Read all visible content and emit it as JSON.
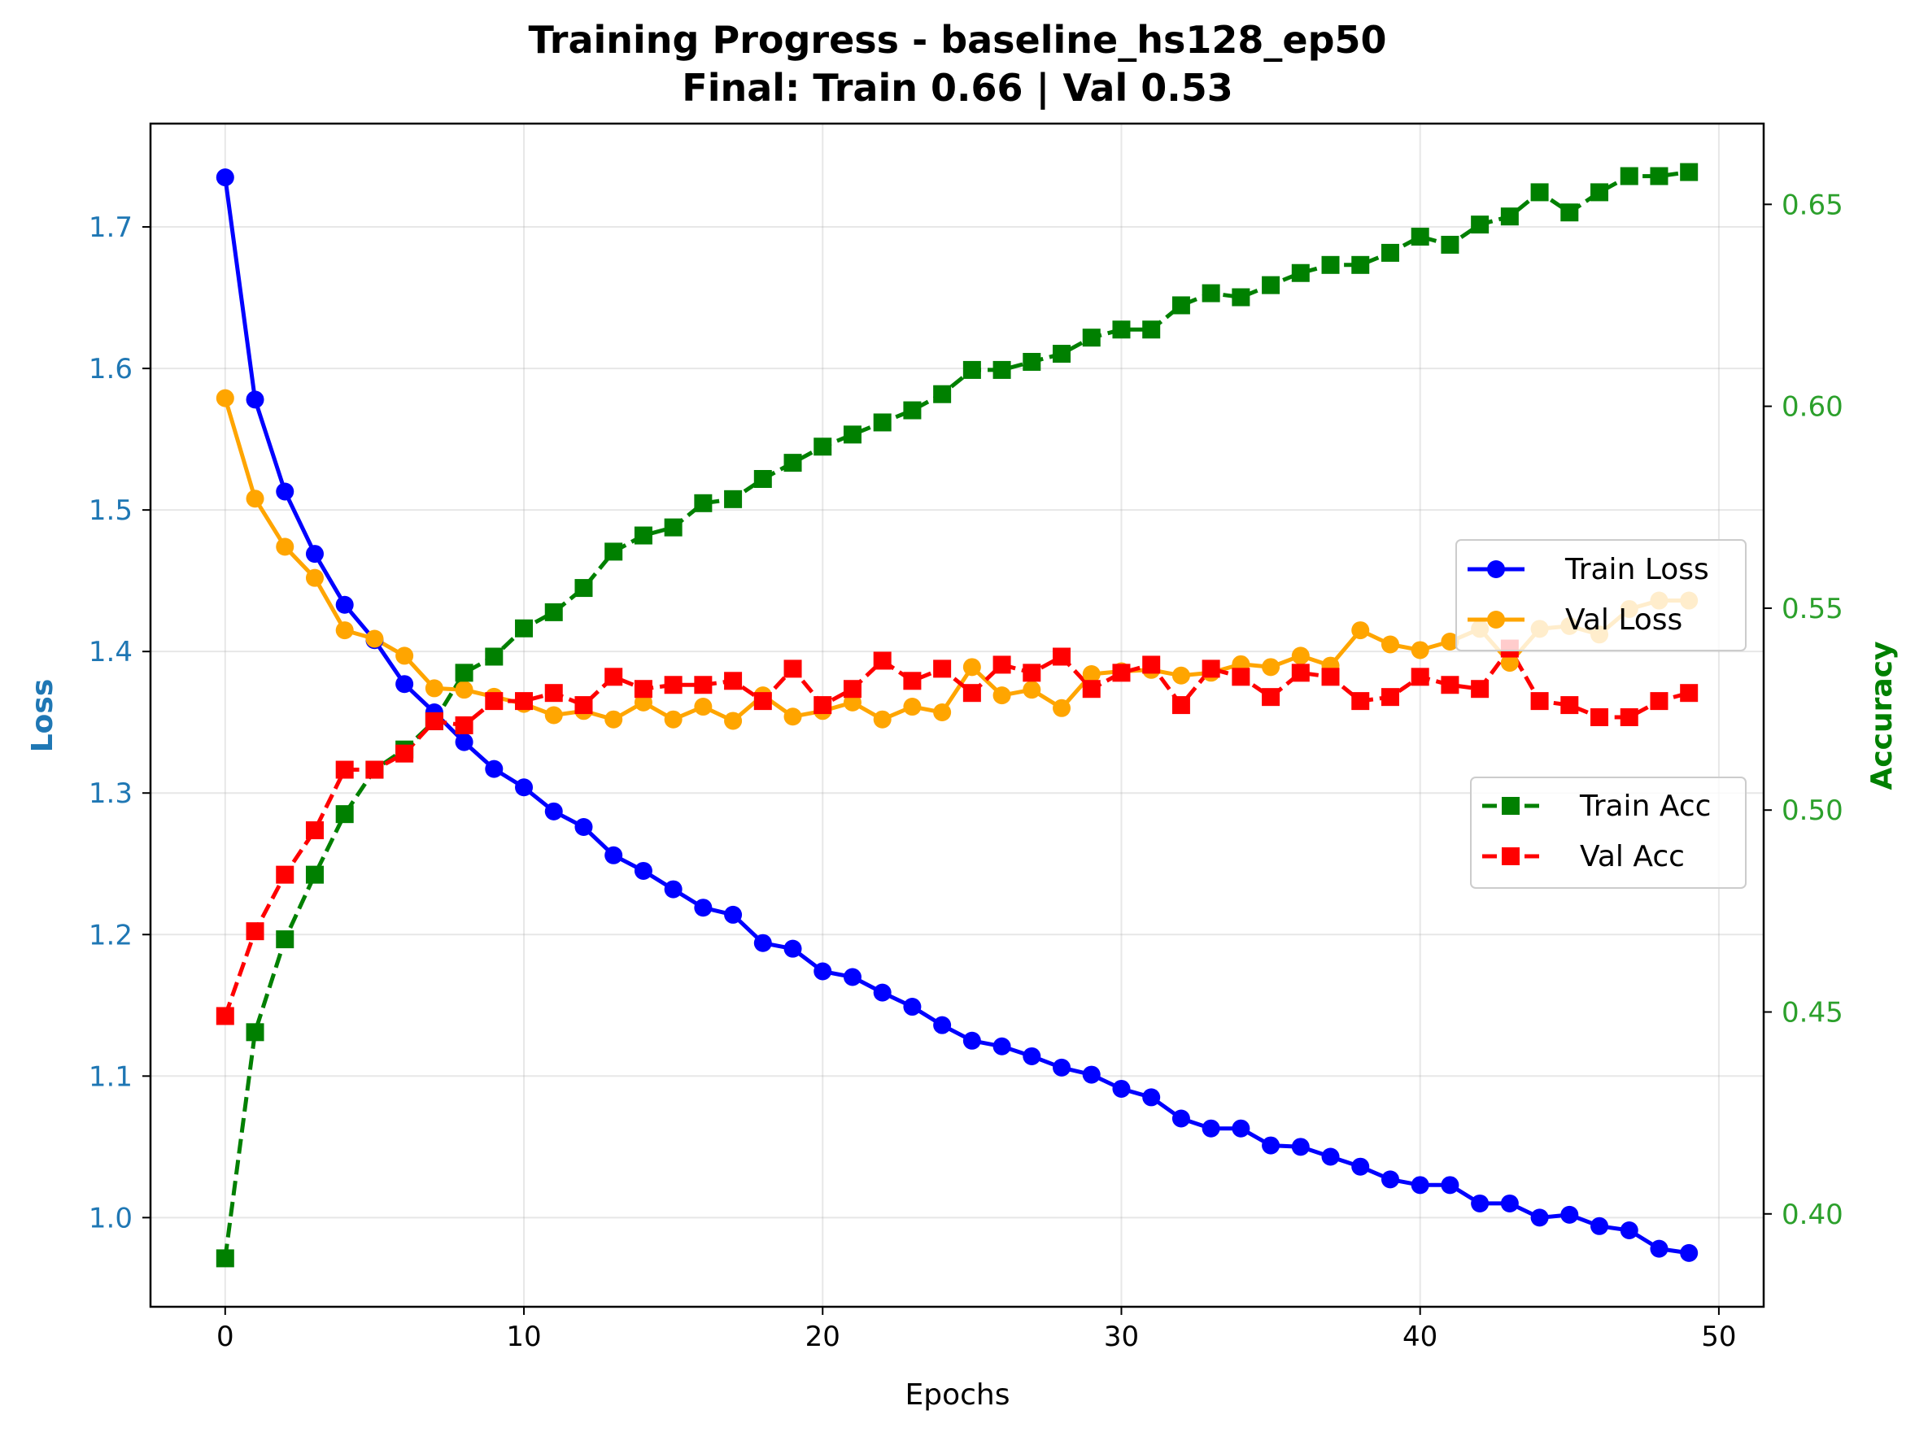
{
  "chart_data": {
    "type": "line",
    "title": "Training Progress - baseline_hs128_ep50",
    "subtitle": "Final: Train 0.66 | Val 0.53",
    "xlabel": "Epochs",
    "ylabel_left": "Loss",
    "ylabel_right": "Accuracy",
    "xlim": [
      -2.5,
      51.5
    ],
    "ylim_left": [
      0.937,
      1.773
    ],
    "ylim_right": [
      0.377,
      0.67
    ],
    "x_ticks": [
      "0",
      "10",
      "20",
      "30",
      "40",
      "50"
    ],
    "y_ticks_left": [
      "1.0",
      "1.1",
      "1.2",
      "1.3",
      "1.4",
      "1.5",
      "1.6",
      "1.7"
    ],
    "y_ticks_right": [
      "0.40",
      "0.45",
      "0.50",
      "0.55",
      "0.60",
      "0.65"
    ],
    "grid": true,
    "legend_loss_placement": "center-right",
    "legend_acc_placement": "center-right",
    "colors": {
      "train_loss": "#0000ff",
      "val_loss": "#ffa500",
      "train_acc": "#008000",
      "val_acc": "#ff0000",
      "left_axis": "#1f77b4",
      "right_axis": "#2ca02c",
      "right_label": "#008000"
    },
    "x": [
      0,
      1,
      2,
      3,
      4,
      5,
      6,
      7,
      8,
      9,
      10,
      11,
      12,
      13,
      14,
      15,
      16,
      17,
      18,
      19,
      20,
      21,
      22,
      23,
      24,
      25,
      26,
      27,
      28,
      29,
      30,
      31,
      32,
      33,
      34,
      35,
      36,
      37,
      38,
      39,
      40,
      41,
      42,
      43,
      44,
      45,
      46,
      47,
      48,
      49
    ],
    "series": [
      {
        "name": "Train Loss",
        "axis": "left",
        "style": "solid",
        "marker": "circle",
        "values": [
          1.735,
          1.578,
          1.513,
          1.469,
          1.433,
          1.408,
          1.377,
          1.357,
          1.336,
          1.317,
          1.304,
          1.287,
          1.276,
          1.256,
          1.245,
          1.232,
          1.219,
          1.214,
          1.194,
          1.19,
          1.174,
          1.17,
          1.159,
          1.149,
          1.136,
          1.125,
          1.121,
          1.114,
          1.106,
          1.101,
          1.091,
          1.085,
          1.07,
          1.063,
          1.063,
          1.051,
          1.05,
          1.043,
          1.036,
          1.027,
          1.023,
          1.023,
          1.01,
          1.01,
          1.0,
          1.002,
          0.994,
          0.991,
          0.978,
          0.975
        ]
      },
      {
        "name": "Val Loss",
        "axis": "left",
        "style": "solid",
        "marker": "circle",
        "values": [
          1.579,
          1.508,
          1.474,
          1.452,
          1.415,
          1.409,
          1.397,
          1.374,
          1.373,
          1.368,
          1.363,
          1.355,
          1.358,
          1.352,
          1.364,
          1.352,
          1.361,
          1.351,
          1.369,
          1.354,
          1.358,
          1.364,
          1.352,
          1.361,
          1.357,
          1.389,
          1.369,
          1.373,
          1.36,
          1.384,
          1.386,
          1.387,
          1.383,
          1.385,
          1.391,
          1.389,
          1.397,
          1.39,
          1.415,
          1.405,
          1.401,
          1.407,
          1.416,
          1.392,
          1.416,
          1.418,
          1.412,
          1.43,
          1.436,
          1.436
        ]
      },
      {
        "name": "Train Acc",
        "axis": "right",
        "style": "dashed",
        "marker": "square",
        "values": [
          0.389,
          0.445,
          0.468,
          0.484,
          0.499,
          0.51,
          0.515,
          0.522,
          0.534,
          0.538,
          0.545,
          0.549,
          0.555,
          0.564,
          0.568,
          0.57,
          0.576,
          0.577,
          0.582,
          0.586,
          0.59,
          0.593,
          0.596,
          0.599,
          0.603,
          0.609,
          0.609,
          0.611,
          0.613,
          0.617,
          0.619,
          0.619,
          0.625,
          0.628,
          0.627,
          0.63,
          0.633,
          0.635,
          0.635,
          0.638,
          0.642,
          0.64,
          0.645,
          0.647,
          0.653,
          0.648,
          0.653,
          0.657,
          0.657,
          0.658
        ]
      },
      {
        "name": "Val Acc",
        "axis": "right",
        "style": "dashed",
        "marker": "square",
        "values": [
          0.449,
          0.47,
          0.484,
          0.495,
          0.51,
          0.51,
          0.514,
          0.522,
          0.521,
          0.527,
          0.527,
          0.529,
          0.526,
          0.533,
          0.53,
          0.531,
          0.531,
          0.532,
          0.527,
          0.535,
          0.526,
          0.53,
          0.537,
          0.532,
          0.535,
          0.529,
          0.536,
          0.534,
          0.538,
          0.53,
          0.534,
          0.536,
          0.526,
          0.535,
          0.533,
          0.528,
          0.534,
          0.533,
          0.527,
          0.528,
          0.533,
          0.531,
          0.53,
          0.54,
          0.527,
          0.526,
          0.523,
          0.523,
          0.527,
          0.529
        ]
      }
    ]
  }
}
